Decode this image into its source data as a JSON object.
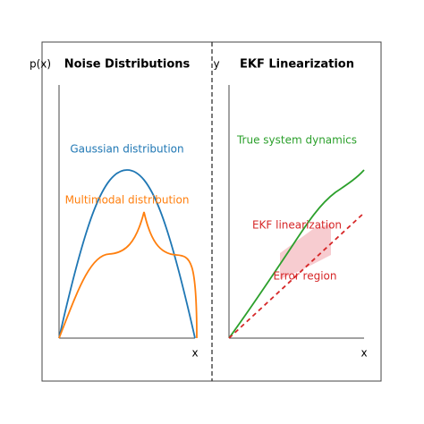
{
  "panels": [
    {
      "title": "Noise Distributions",
      "y_label": "p(x)",
      "x_label": "x",
      "annotations": [
        "Gaussian distribution",
        "Multimodal distribution"
      ]
    },
    {
      "title": "EKF Linearization",
      "y_label": "y",
      "x_label": "x",
      "annotations": [
        "True system dynamics",
        "EKF linearization",
        "Error region"
      ]
    }
  ]
}
